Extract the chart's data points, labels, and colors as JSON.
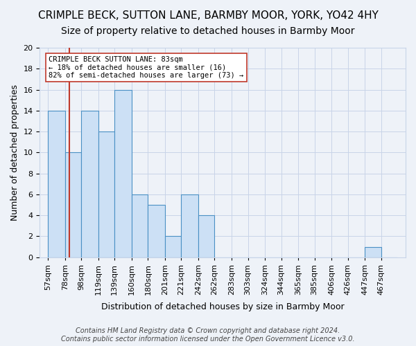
{
  "title": "CRIMPLE BECK, SUTTON LANE, BARMBY MOOR, YORK, YO42 4HY",
  "subtitle": "Size of property relative to detached houses in Barmby Moor",
  "xlabel": "Distribution of detached houses by size in Barmby Moor",
  "ylabel": "Number of detached properties",
  "footer_line1": "Contains HM Land Registry data © Crown copyright and database right 2024.",
  "footer_line2": "Contains public sector information licensed under the Open Government Licence v3.0.",
  "bin_labels": [
    "57sqm",
    "78sqm",
    "98sqm",
    "119sqm",
    "139sqm",
    "160sqm",
    "180sqm",
    "201sqm",
    "221sqm",
    "242sqm",
    "262sqm",
    "283sqm",
    "303sqm",
    "324sqm",
    "344sqm",
    "365sqm",
    "385sqm",
    "406sqm",
    "426sqm",
    "447sqm",
    "467sqm"
  ],
  "bar_heights": [
    14,
    10,
    14,
    12,
    16,
    6,
    5,
    2,
    6,
    4,
    0,
    0,
    0,
    0,
    0,
    0,
    0,
    0,
    0,
    1,
    0
  ],
  "bin_edges": [
    57,
    78,
    98,
    119,
    139,
    160,
    180,
    201,
    221,
    242,
    262,
    283,
    303,
    324,
    344,
    365,
    385,
    406,
    426,
    447,
    467
  ],
  "bar_color": "#cce0f5",
  "bar_edge_color": "#4a90c4",
  "vline_x": 83,
  "vline_color": "#c0392b",
  "annotation_text": "CRIMPLE BECK SUTTON LANE: 83sqm\n← 18% of detached houses are smaller (16)\n82% of semi-detached houses are larger (73) →",
  "annotation_box_color": "white",
  "annotation_box_edge_color": "#c0392b",
  "ylim": [
    0,
    20
  ],
  "yticks": [
    0,
    2,
    4,
    6,
    8,
    10,
    12,
    14,
    16,
    18,
    20
  ],
  "background_color": "#eef2f8",
  "grid_color": "#c8d4e8",
  "title_fontsize": 11,
  "subtitle_fontsize": 10,
  "axis_label_fontsize": 9,
  "tick_fontsize": 8,
  "annotation_fontsize": 7.5,
  "footer_fontsize": 7
}
